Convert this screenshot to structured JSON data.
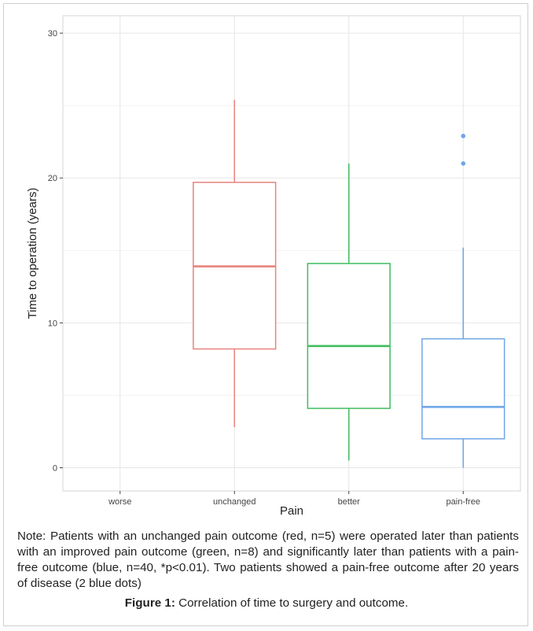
{
  "chart_data": {
    "type": "boxplot",
    "xlabel": "Pain",
    "ylabel": "Time to operation (years)",
    "ylim": [
      -1.6,
      31.2
    ],
    "yticks": [
      0,
      10,
      20,
      30
    ],
    "grid": true,
    "categories": [
      "worse",
      "unchanged",
      "better",
      "pain-free"
    ],
    "boxes": [
      {
        "category": "worse",
        "color": null,
        "min": null,
        "q1": null,
        "median": null,
        "q3": null,
        "max": null,
        "outliers": []
      },
      {
        "category": "unchanged",
        "color": "#e8847d",
        "min": 2.8,
        "q1": 8.2,
        "median": 13.9,
        "q3": 19.7,
        "max": 25.4,
        "outliers": []
      },
      {
        "category": "better",
        "color": "#3fbd5e",
        "min": 0.5,
        "q1": 4.1,
        "median": 8.4,
        "q3": 14.1,
        "max": 21.0,
        "outliers": []
      },
      {
        "category": "pain-free",
        "color": "#6ea6e8",
        "min": 0.0,
        "q1": 2.0,
        "median": 4.2,
        "q3": 8.9,
        "max": 15.2,
        "outliers": [
          21.0,
          22.9
        ]
      }
    ]
  },
  "note": "Note: Patients with an unchanged pain outcome (red, n=5) were operated later than patients with an improved pain outcome (green, n=8) and significantly later than patients with a pain-free outcome (blue, n=40, *p<0.01). Two patients showed a pain-free outcome after 20 years of disease (2 blue dots)",
  "caption": {
    "label": "Figure 1:",
    "text": " Correlation of time to surgery and outcome."
  }
}
